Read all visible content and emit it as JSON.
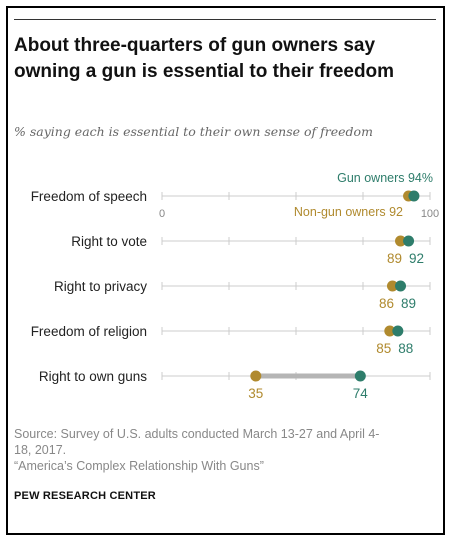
{
  "title": "About three-quarters of gun owners say owning a gun is essential to their freedom",
  "subtitle": "% saying each is essential to their own sense of freedom",
  "source": {
    "line1": "Source: Survey of U.S. adults conducted March 13-27 and April 4-",
    "line2": "18, 2017.",
    "line3": "“America’s Complex Relationship With Guns”"
  },
  "organization": "PEW RESEARCH CENTER",
  "colors": {
    "gun_owners": "#2e7d6b",
    "non_gun_owners": "#b08a2e",
    "axis": "#cccccc",
    "connector": "#b5b5b5"
  },
  "chart_data": {
    "type": "dot",
    "xlim": [
      0,
      100
    ],
    "ticks": [
      {
        "value": 0,
        "label": "0"
      },
      {
        "value": 100,
        "label": "100"
      }
    ],
    "legend": {
      "gun_owners": "Gun owners 94%",
      "non_gun_owners": "Non-gun owners 92"
    },
    "categories": [
      "Freedom of speech",
      "Right to vote",
      "Right to privacy",
      "Freedom of religion",
      "Right to own guns"
    ],
    "series": [
      {
        "name": "Non-gun owners",
        "key": "non_gun_owners",
        "values": [
          92,
          89,
          86,
          85,
          35
        ]
      },
      {
        "name": "Gun owners",
        "key": "gun_owners",
        "values": [
          94,
          92,
          89,
          88,
          74
        ]
      }
    ],
    "value_labels": {
      "non_gun_owners": [
        "",
        "89",
        "86",
        "85",
        "35"
      ],
      "gun_owners": [
        "",
        "92",
        "89",
        "88",
        "74"
      ]
    }
  }
}
